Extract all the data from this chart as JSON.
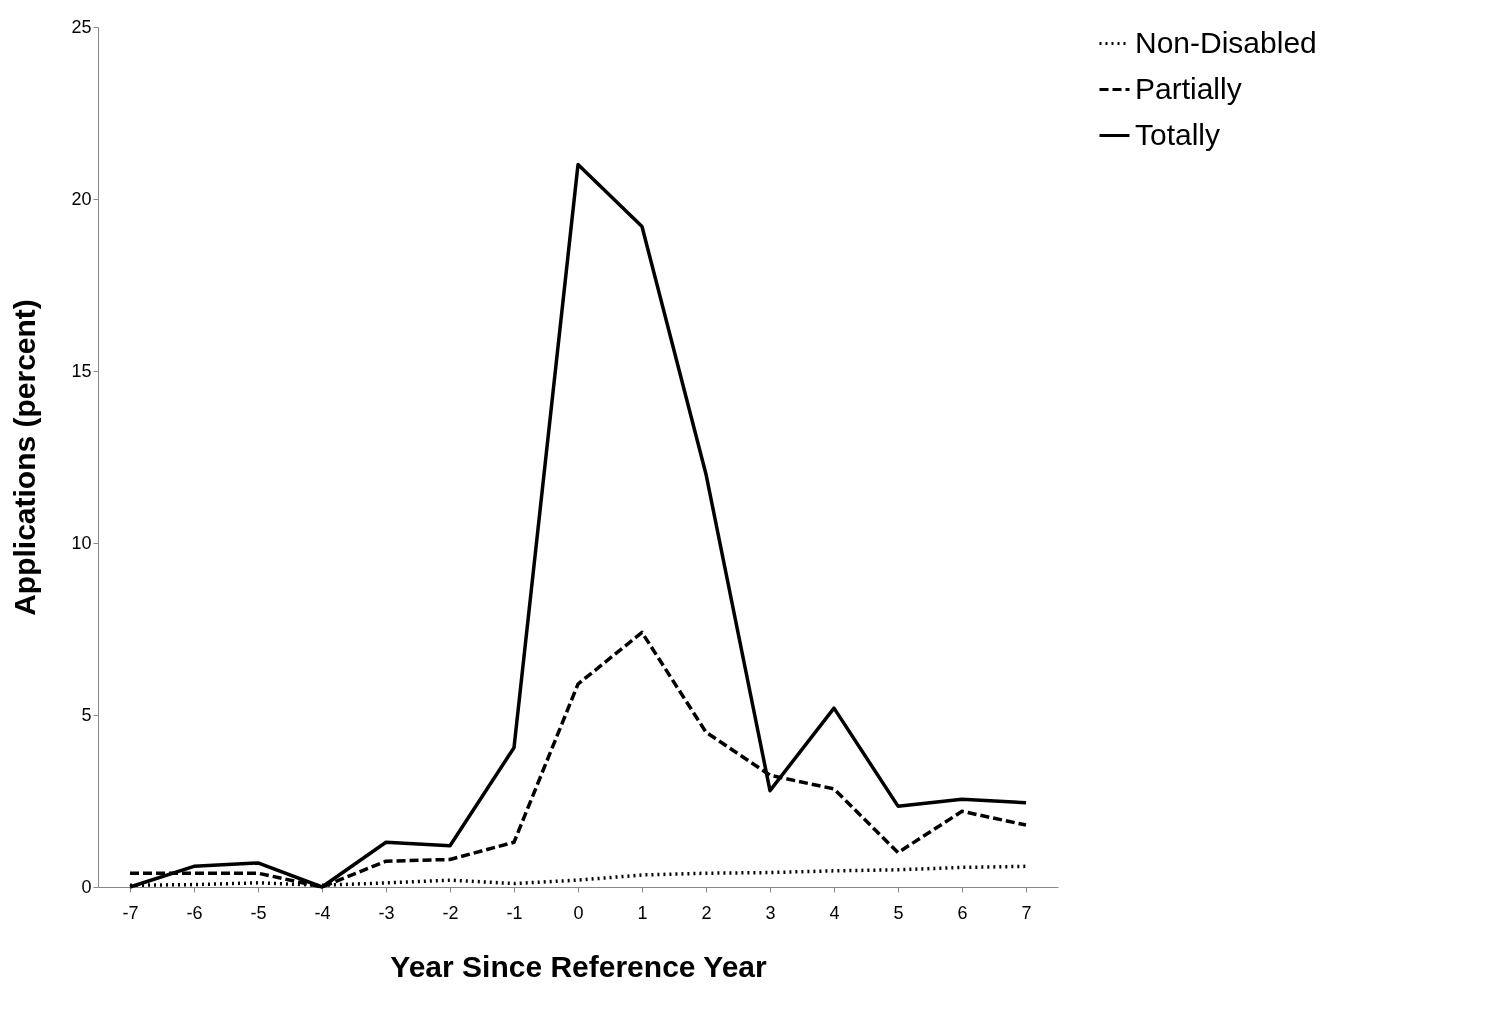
{
  "chart_data": {
    "type": "line",
    "xlabel": "Year Since Reference Year",
    "ylabel": "Applications (percent)",
    "categories": [
      "-7",
      "-6",
      "-5",
      "-4",
      "-3",
      "-2",
      "-1",
      "0",
      "1",
      "2",
      "3",
      "4",
      "5",
      "6",
      "7"
    ],
    "series": [
      {
        "name": "Non-Disabled",
        "color": "#000000",
        "line_style": "dotted",
        "values": [
          0.05,
          0.07,
          0.12,
          0.05,
          0.12,
          0.2,
          0.1,
          0.2,
          0.35,
          0.4,
          0.42,
          0.47,
          0.5,
          0.57,
          0.6
        ]
      },
      {
        "name": "Partially",
        "color": "#000000",
        "line_style": "dashed",
        "values": [
          0.4,
          0.4,
          0.4,
          0,
          0.75,
          0.8,
          1.3,
          5.9,
          7.4,
          4.5,
          3.25,
          2.85,
          1.0,
          2.2,
          1.8
        ]
      },
      {
        "name": "Totally",
        "color": "#000000",
        "line_style": "solid",
        "values": [
          0,
          0.6,
          0.7,
          0,
          1.3,
          1.2,
          4.05,
          21,
          19.2,
          12,
          2.8,
          5.2,
          2.35,
          2.55,
          2.45
        ]
      }
    ],
    "ylim": [
      0,
      25
    ],
    "yticks": [
      0,
      5,
      10,
      15,
      20,
      25
    ],
    "grid": false,
    "legend": "right",
    "marker": "none"
  }
}
